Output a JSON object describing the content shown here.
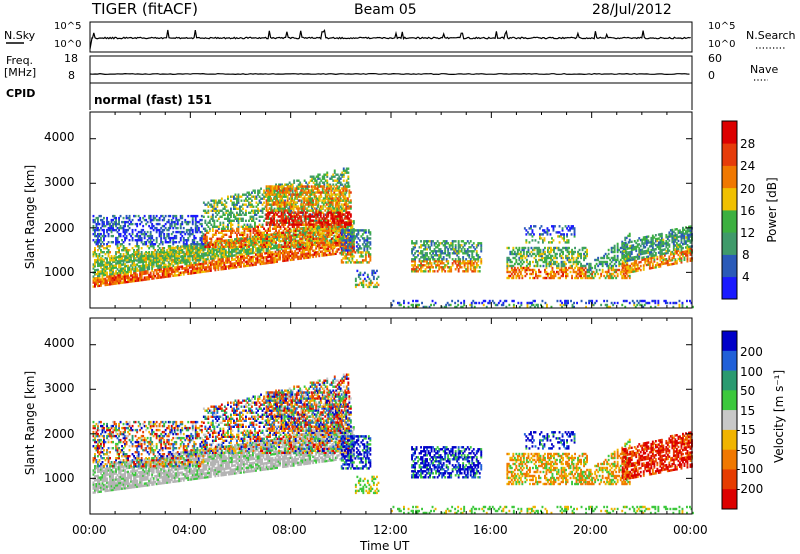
{
  "header": {
    "station": "TIGER (fitACF)",
    "beam": "Beam 05",
    "date": "28/Jul/2012"
  },
  "top_panels": {
    "nsky_label": "N.Sky",
    "nsearch_label": "N.Search",
    "count_top": "10^5",
    "count_bottom": "10^0",
    "freq_label_1": "Freq.",
    "freq_label_2": "[MHz]",
    "freq_top": "18",
    "freq_bottom": "8",
    "nave_label": "Nave",
    "nave_top": "60",
    "nave_bottom": "0",
    "cpid_label": "CPID",
    "cpid_value": "normal (fast) 151"
  },
  "colors": {
    "power_scale": [
      "#1a1aff",
      "#2a5ab8",
      "#3f9a6a",
      "#3cb040",
      "#f0c000",
      "#f07800",
      "#e63c0a",
      "#dc0000"
    ],
    "velocity_scale": [
      "#0000c8",
      "#2060d8",
      "#2a9a70",
      "#3cc83c",
      "#c8c8c8",
      "#f0b400",
      "#f07800",
      "#e63c00",
      "#dc0000"
    ],
    "ground_scatter": "#b4b4b4"
  },
  "chart_data": [
    {
      "type": "heatmap",
      "name": "power-panel",
      "ylabel": "Slant Range [km]",
      "y_ticks": [
        "1000",
        "2000",
        "3000",
        "4000"
      ],
      "ylim": [
        200,
        4600
      ],
      "xlim": [
        0,
        24
      ],
      "colorbar": {
        "label": "Power [dB]",
        "ticks": [
          "4",
          "8",
          "12",
          "16",
          "20",
          "24",
          "28"
        ],
        "range": [
          0,
          32
        ]
      }
    },
    {
      "type": "heatmap",
      "name": "velocity-panel",
      "ylabel": "Slant Range [km]",
      "y_ticks": [
        "1000",
        "2000",
        "3000",
        "4000"
      ],
      "ylim": [
        200,
        4600
      ],
      "xlim": [
        0,
        24
      ],
      "colorbar": {
        "label": "Velocity [m s⁻¹]",
        "ticks": [
          "200",
          "100",
          "50",
          "15",
          "-15",
          "-50",
          "-100",
          "-200"
        ]
      }
    }
  ],
  "x_axis": {
    "ticks": [
      "00:00",
      "04:00",
      "08:00",
      "12:00",
      "16:00",
      "20:00",
      "00:00"
    ],
    "label": "Time UT"
  }
}
